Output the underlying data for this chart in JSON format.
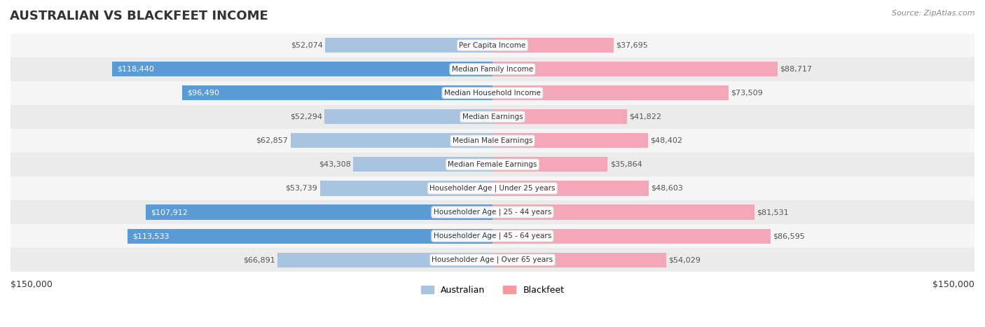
{
  "title": "AUSTRALIAN VS BLACKFEET INCOME",
  "source": "Source: ZipAtlas.com",
  "categories": [
    "Per Capita Income",
    "Median Family Income",
    "Median Household Income",
    "Median Earnings",
    "Median Male Earnings",
    "Median Female Earnings",
    "Householder Age | Under 25 years",
    "Householder Age | 25 - 44 years",
    "Householder Age | 45 - 64 years",
    "Householder Age | Over 65 years"
  ],
  "australian_values": [
    52074,
    118440,
    96490,
    52294,
    62857,
    43308,
    53739,
    107912,
    113533,
    66891
  ],
  "blackfeet_values": [
    37695,
    88717,
    73509,
    41822,
    48402,
    35864,
    48603,
    81531,
    86595,
    54029
  ],
  "australian_labels": [
    "$52,074",
    "$118,440",
    "$96,490",
    "$52,294",
    "$62,857",
    "$43,308",
    "$53,739",
    "$107,912",
    "$113,533",
    "$66,891"
  ],
  "blackfeet_labels": [
    "$37,695",
    "$88,717",
    "$73,509",
    "$41,822",
    "$48,402",
    "$35,864",
    "$48,603",
    "$81,531",
    "$86,595",
    "$54,029"
  ],
  "max_value": 150000,
  "australian_color_light": "#a8c4e0",
  "australian_color_dark": "#5b9bd5",
  "blackfeet_color_light": "#f4a7b9",
  "blackfeet_color_dark": "#e8729a",
  "label_threshold": 90000,
  "bg_row_color": "#f0f0f0",
  "bg_alt_color": "#ffffff",
  "legend_australian_color": "#a8c4e0",
  "legend_blackfeet_color": "#f4979e"
}
